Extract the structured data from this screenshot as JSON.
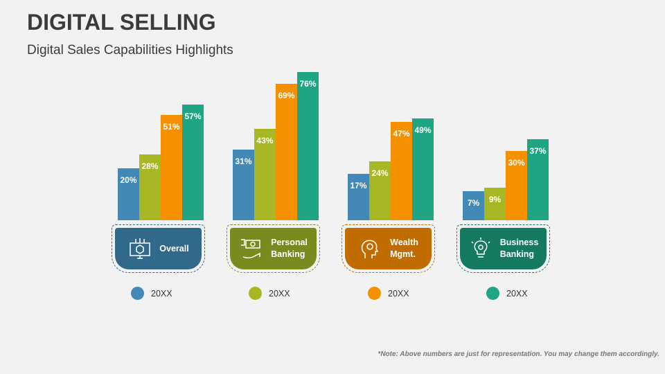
{
  "title": "DIGITAL SELLING",
  "subtitle": "Digital Sales Capabilities Highlights",
  "note": "*Note: Above numbers are just for representation. You may change them accordingly.",
  "chart_data": {
    "type": "bar",
    "categories": [
      "Overall",
      "Personal Banking",
      "Wealth Mgmt.",
      "Business Banking"
    ],
    "series": [
      {
        "name": "20XX",
        "color": "#4289b5",
        "values": [
          20,
          31,
          17,
          7
        ]
      },
      {
        "name": "20XX",
        "color": "#a8b824",
        "values": [
          28,
          43,
          24,
          9
        ]
      },
      {
        "name": "20XX",
        "color": "#f59100",
        "values": [
          51,
          69,
          47,
          30
        ]
      },
      {
        "name": "20XX",
        "color": "#20a584",
        "values": [
          57,
          76,
          49,
          37
        ]
      }
    ],
    "value_suffix": "%"
  },
  "panels": [
    {
      "line1": "Overall",
      "line2": "",
      "icon": "monitor-cube-icon",
      "color": "#31698a"
    },
    {
      "line1": "Personal",
      "line2": "Banking",
      "icon": "hand-money-icon",
      "color": "#7b8a1e"
    },
    {
      "line1": "Wealth",
      "line2": "Mgmt.",
      "icon": "head-gear-icon",
      "color": "#c06c00"
    },
    {
      "line1": "Business",
      "line2": "Banking",
      "icon": "lightbulb-icon",
      "color": "#157a60"
    }
  ]
}
